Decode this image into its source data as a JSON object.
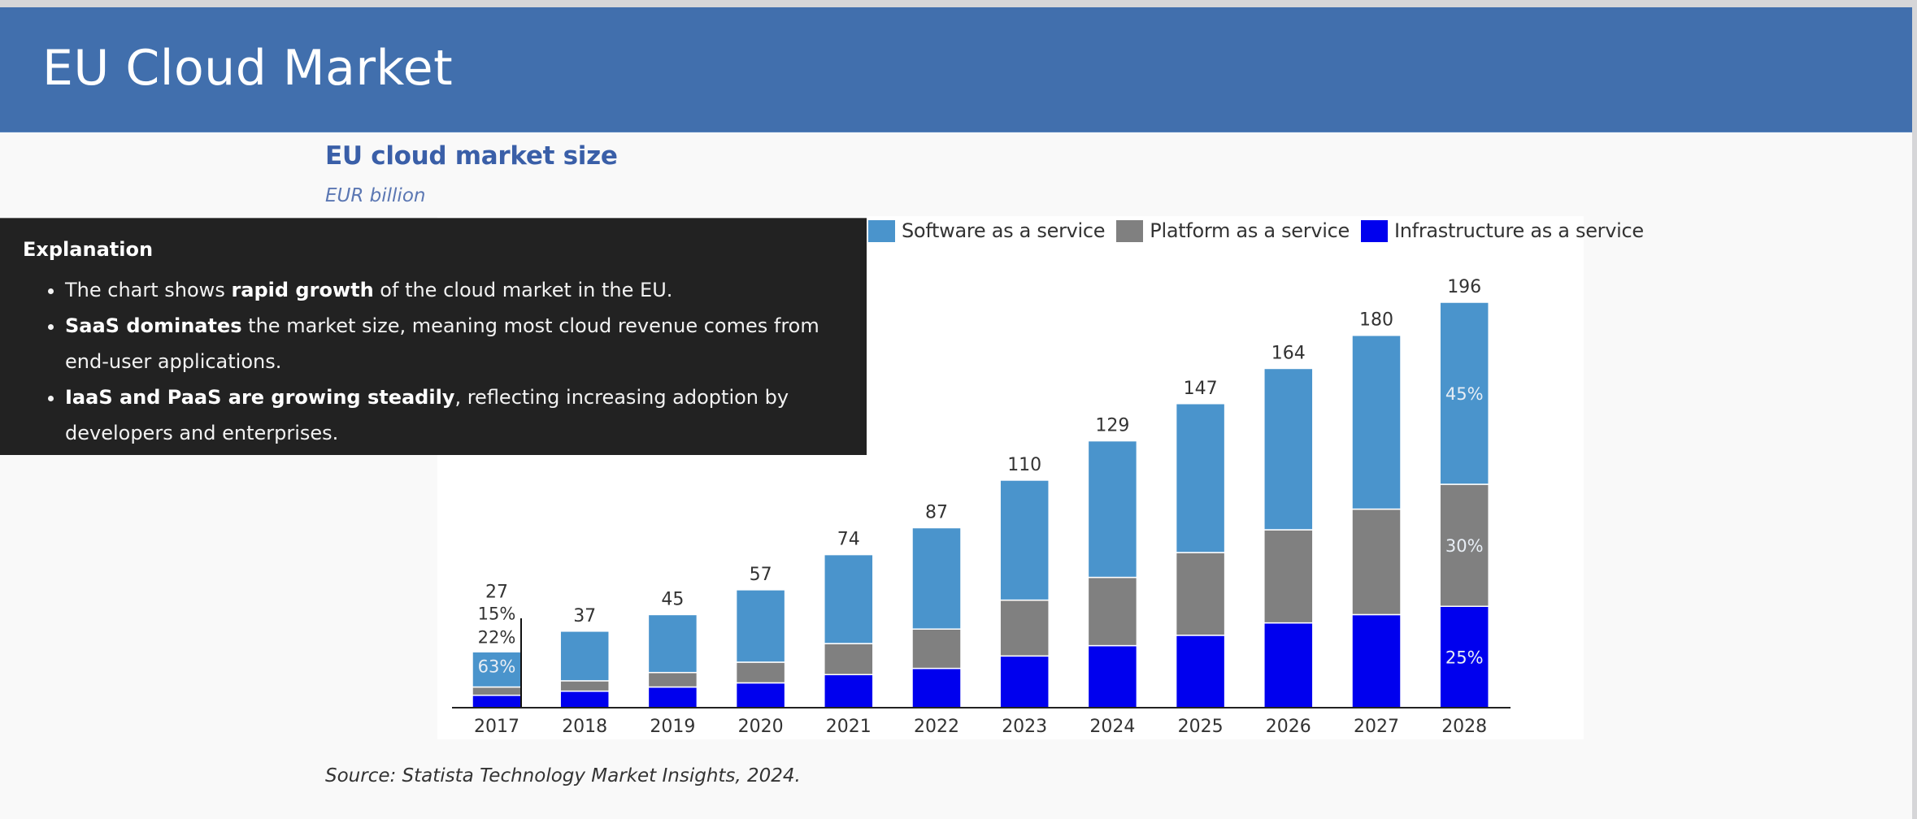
{
  "page": {
    "header_title": "EU Cloud Market",
    "chart_title": "EU cloud market size",
    "chart_subtitle": "EUR billion",
    "source": "Source: Statista Technology Market Insights, 2024."
  },
  "explanation": {
    "heading": "Explanation",
    "bullets": [
      {
        "bold": "",
        "pre": "The chart shows ",
        "strong": "rapid growth",
        "post": " of the cloud market in the EU."
      },
      {
        "pre": "",
        "strong": "SaaS dominates",
        "post": " the market size, meaning most cloud revenue comes from end-user applications."
      },
      {
        "pre": "",
        "strong": "IaaS and PaaS are growing steadily",
        "post": ", reflecting increasing adoption by developers and enterprises."
      }
    ]
  },
  "colors": {
    "header_bg": "#416fad",
    "saas": "#4a94cc",
    "paas": "#808080",
    "iaas": "#0000ee"
  },
  "chart_data": {
    "type": "bar",
    "stacked": true,
    "title": "EU cloud market size",
    "ylabel": "EUR billion",
    "xlabel": "",
    "legend_position": "top-right",
    "grid": false,
    "ylim": [
      0,
      200
    ],
    "categories": [
      "2017",
      "2018",
      "2019",
      "2020",
      "2021",
      "2022",
      "2023",
      "2024",
      "2025",
      "2026",
      "2027",
      "2028"
    ],
    "totals": [
      27,
      37,
      45,
      57,
      74,
      87,
      110,
      129,
      147,
      164,
      180,
      196
    ],
    "series": [
      {
        "name": "Infrastructure as a service",
        "key": "iaas",
        "values": [
          6,
          8,
          10,
          12,
          16,
          19,
          25,
          30,
          35,
          41,
          45,
          49
        ]
      },
      {
        "name": "Platform as a service",
        "key": "paas",
        "values": [
          4,
          5,
          7,
          10,
          15,
          19,
          27,
          33,
          40,
          45,
          51,
          59
        ]
      },
      {
        "name": "Software as a service",
        "key": "saas",
        "values": [
          17,
          24,
          28,
          35,
          43,
          49,
          58,
          66,
          72,
          78,
          84,
          88
        ]
      }
    ],
    "legend_order": [
      "saas",
      "paas",
      "iaas"
    ],
    "annotations": [
      {
        "category": "2017",
        "series": "saas",
        "text": "63%",
        "placement": "inside"
      },
      {
        "category": "2017",
        "series": "paas",
        "text": "15%",
        "placement": "above"
      },
      {
        "category": "2017",
        "series": "iaas",
        "text": "22%",
        "placement": "above"
      },
      {
        "category": "2028",
        "series": "saas",
        "text": "45%",
        "placement": "inside"
      },
      {
        "category": "2028",
        "series": "paas",
        "text": "30%",
        "placement": "inside"
      },
      {
        "category": "2028",
        "series": "iaas",
        "text": "25%",
        "placement": "inside"
      }
    ]
  }
}
